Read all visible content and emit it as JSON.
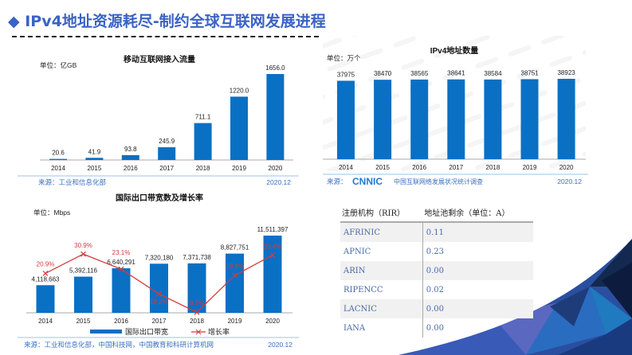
{
  "title": "◆ IPv4地址资源耗尽-制约全球互联网发展进程",
  "watermark": "CNNIC",
  "colors": {
    "bar": "#0a70c4",
    "line": "#d63a3a",
    "title": "#3a63c4",
    "source": "#3a6fc0"
  },
  "chart_data": [
    {
      "type": "bar",
      "title": "移动互联网接入流量",
      "unit": "单位：亿GB",
      "categories": [
        "2014",
        "2015",
        "2016",
        "2017",
        "2018",
        "2019",
        "2020"
      ],
      "values": [
        20.6,
        41.9,
        93.8,
        245.9,
        711.1,
        1220.0,
        1656.0
      ],
      "labels": [
        "20.6",
        "41.9",
        "93.8",
        "245.9",
        "711.1",
        "1220.0",
        "1656.0"
      ],
      "source": "来源：工业和信息化部",
      "date": "2020.12"
    },
    {
      "type": "bar+line",
      "title": "国际出口带宽数及增长率",
      "unit": "单位：Mbps",
      "categories": [
        "2014",
        "2015",
        "2016",
        "2017",
        "2018",
        "2019",
        "2020"
      ],
      "series": [
        {
          "name": "国际出口带宽",
          "type": "bar",
          "values": [
            4118663,
            5392116,
            6640291,
            7320180,
            7371738,
            8827751,
            11511397
          ],
          "labels": [
            "4,118,663",
            "5,392,116",
            "6,640,291",
            "7,320,180",
            "7,371,738",
            "8,827,751",
            "11,511,397"
          ]
        },
        {
          "name": "增长率",
          "type": "line",
          "values": [
            20.9,
            30.9,
            23.1,
            10.2,
            0.7,
            19.8,
            30.4
          ],
          "labels": [
            "20.9%",
            "30.9%",
            "23.1%",
            "10.2%",
            "0.7%",
            "19.8%",
            "30.4%"
          ]
        }
      ],
      "legend": "bottom",
      "source": "来源：工业和信息化部，中国科技网，中国教育和科研计算机网",
      "date": "2020.12"
    },
    {
      "type": "bar",
      "title": "IPv4地址数量",
      "unit": "单位：万个",
      "categories": [
        "2014",
        "2015",
        "2016",
        "2017",
        "2018",
        "2019",
        "2020"
      ],
      "values": [
        37975,
        38470,
        38565,
        38641,
        38584,
        38751,
        38923
      ],
      "labels": [
        "37975",
        "38470",
        "38565",
        "38641",
        "38584",
        "38751",
        "38923"
      ],
      "source_prefix": "来源：",
      "source_logo": "CNNIC",
      "source": "中国互联网络发展状况统计调查",
      "date": "2020.12"
    }
  ],
  "table": {
    "headers": [
      "注册机构（RIR）",
      "地址池剩余（单位：A）"
    ],
    "rows": [
      [
        "AFRINIC",
        "0.11"
      ],
      [
        "APNIC",
        "0.23"
      ],
      [
        "ARIN",
        "0.00"
      ],
      [
        "RIPENCC",
        "0.02"
      ],
      [
        "LACNIC",
        "0.00"
      ],
      [
        "IANA",
        "0.00"
      ]
    ]
  }
}
